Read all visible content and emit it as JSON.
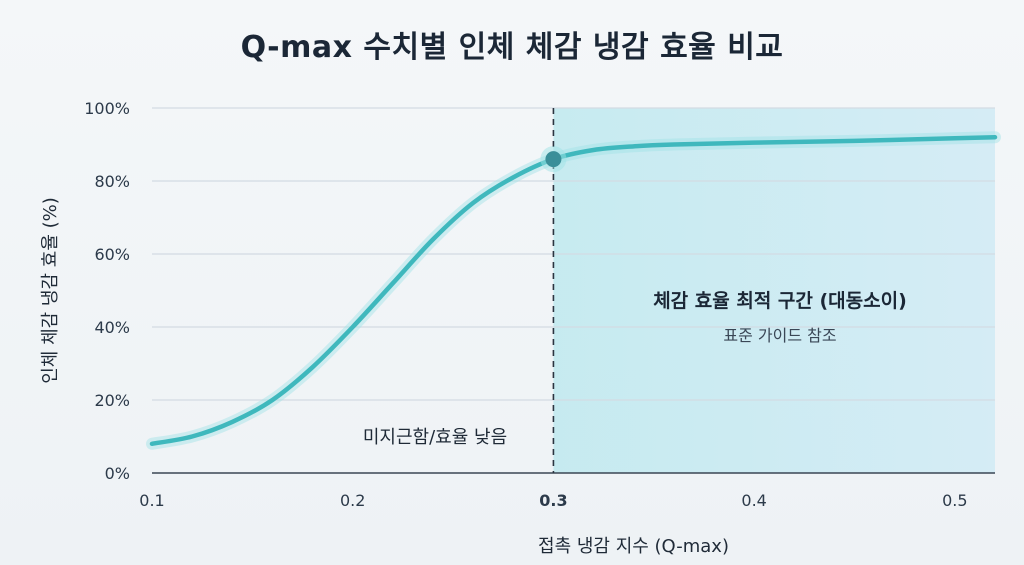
{
  "title": "Q-max 수치별 인체 체감 냉감 효율 비교",
  "chart_data": {
    "type": "line",
    "title": "Q-max 수치별 인체 체감 냉감 효율 비교",
    "xlabel": "접촉 냉감 지수 (Q-max)",
    "ylabel": "인체 체감 냉감 효율 (%)",
    "xlim": [
      0.1,
      0.52
    ],
    "ylim": [
      0,
      100
    ],
    "x_ticks": [
      "0.1",
      "0.2",
      "0.3",
      "0.4",
      "0.5"
    ],
    "x_tick_values": [
      0.1,
      0.2,
      0.3,
      0.4,
      0.5
    ],
    "x_emphasized_tick": "0.3",
    "y_ticks": [
      "0%",
      "20%",
      "40%",
      "60%",
      "80%",
      "100%"
    ],
    "y_tick_values": [
      0,
      20,
      40,
      60,
      80,
      100
    ],
    "grid": true,
    "series": [
      {
        "x": [
          0.1,
          0.12,
          0.14,
          0.16,
          0.18,
          0.2,
          0.22,
          0.24,
          0.26,
          0.28,
          0.3,
          0.32,
          0.34,
          0.36,
          0.4,
          0.45,
          0.5,
          0.52
        ],
        "y": [
          8,
          10,
          14,
          20,
          29,
          40,
          52,
          64,
          74,
          81,
          86,
          88.5,
          89.5,
          90,
          90.5,
          91,
          91.7,
          92
        ],
        "color": "#3fb8bd"
      }
    ],
    "highlight_point": {
      "x": 0.3,
      "y": 86
    },
    "threshold_line": {
      "x": 0.3
    },
    "annotations": {
      "optimal_zone_title": "체감 효율 최적 구간 (대동소이)",
      "optimal_zone_subtitle": "표준 가이드 참조",
      "low_zone_label": "미지근함/효율 낮음"
    },
    "colors": {
      "curve": "#3fb8bd",
      "point": "#3a8f99",
      "zone_fill": "#c9ecf2",
      "grid": "#d3dbe3",
      "threshold": "#2b3440"
    }
  }
}
